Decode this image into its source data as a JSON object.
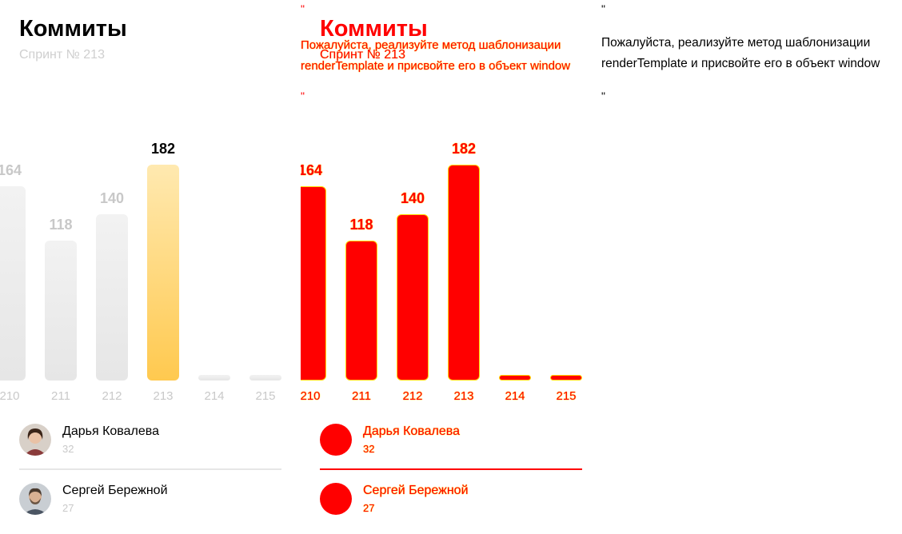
{
  "header": {
    "title": "Коммиты",
    "subtitle": "Спринт № 213"
  },
  "chart_data": {
    "type": "bar",
    "title": "Коммиты",
    "subtitle": "Спринт № 213",
    "categories": [
      "210",
      "211",
      "212",
      "213",
      "214",
      "215"
    ],
    "values": [
      164,
      118,
      140,
      182,
      0,
      0
    ],
    "value_labels": [
      "164",
      "118",
      "140",
      "182",
      "",
      ""
    ],
    "active_category": "213",
    "ylim": [
      0,
      182
    ],
    "grid": false,
    "legend": "none",
    "colors": {
      "bar": "#e8e8e8",
      "active": "#ffcc55",
      "value": "#c8c8c8",
      "active_value": "#000000"
    }
  },
  "users": [
    {
      "name": "Дарья Ковалева",
      "count": "32",
      "avatar_icon": "user-avatar-icon"
    },
    {
      "name": "Сергей Бережной",
      "count": "27",
      "avatar_icon": "user-avatar-icon"
    }
  ],
  "message": {
    "quote": "\"",
    "line1": "Пожалуйста, реализуйте метод шаблонизации",
    "line2": "renderTemplate и присвойте его в объект window"
  },
  "diff_colors": {
    "mismatch": "#ff0000",
    "edge": "#ffd900"
  }
}
